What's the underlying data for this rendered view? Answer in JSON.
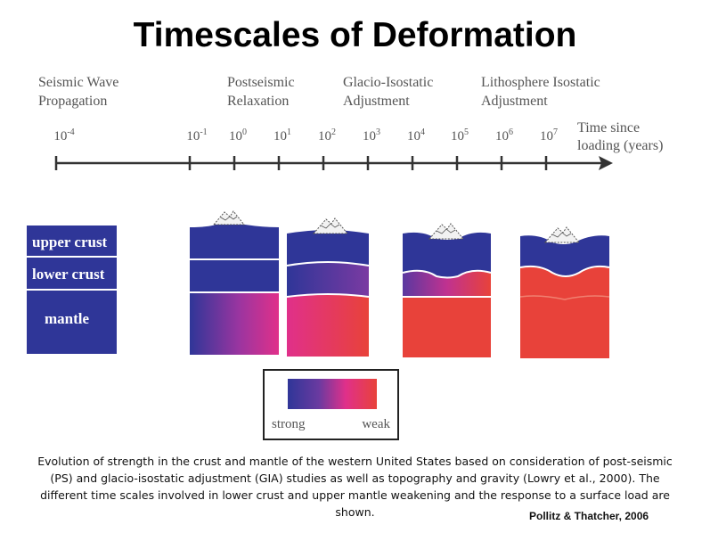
{
  "title": "Timescales of Deformation",
  "phases": [
    {
      "label": "Seismic Wave\nPropagation"
    },
    {
      "label": "Postseismic\nRelaxation"
    },
    {
      "label": "Glacio-Isostatic\nAdjustment"
    },
    {
      "label": "Lithosphere Isostatic\nAdjustment"
    }
  ],
  "axis": {
    "label": "Time since\nloading (years)",
    "ticks": [
      {
        "base": "10",
        "exp": "-4"
      },
      {
        "base": "10",
        "exp": "-1"
      },
      {
        "base": "10",
        "exp": "0"
      },
      {
        "base": "10",
        "exp": "1"
      },
      {
        "base": "10",
        "exp": "2"
      },
      {
        "base": "10",
        "exp": "3"
      },
      {
        "base": "10",
        "exp": "4"
      },
      {
        "base": "10",
        "exp": "5"
      },
      {
        "base": "10",
        "exp": "6"
      },
      {
        "base": "10",
        "exp": "7"
      }
    ]
  },
  "layers": {
    "upper_crust": "upper crust",
    "lower_crust": "lower crust",
    "mantle": "mantle"
  },
  "legend": {
    "strong": "strong",
    "weak": "weak",
    "colors": {
      "strong": "#2f3698",
      "weak": "#e8423a",
      "mid": "#e0308a"
    }
  },
  "caption": "Evolution of strength in the crust and mantle of the western United States based on consideration of post-seismic (PS) and glacio-isostatic adjustment (GIA) studies as well as topography and gravity (Lowry et al., 2000). The different time scales involved in lower crust and upper mantle weakening and the response to a surface load are shown.",
  "credit": "Pollitz & Thatcher, 2006"
}
